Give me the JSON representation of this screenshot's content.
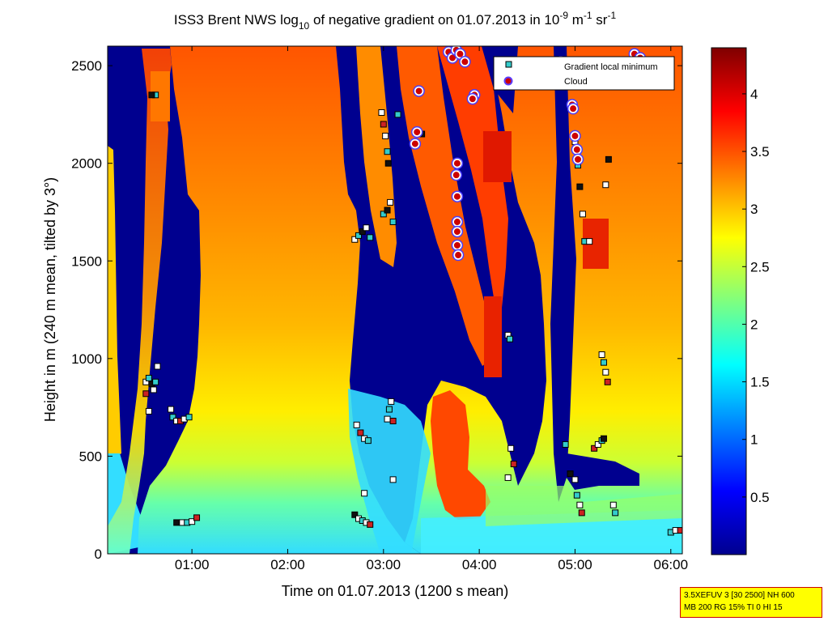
{
  "chart_data": {
    "type": "heatmap",
    "title": "ISS3 Brent NWS log10 of negative gradient on 01.07.2013 in 10-9 m-1 sr-1",
    "title_parts": {
      "main": "ISS3 Brent NWS log",
      "sub10": "10",
      "mid": " of negative gradient on 01.07.2013 in 10",
      "sup9": "-9",
      "m": " m",
      "sup1": "-1",
      "sr": " sr",
      "sup1b": "-1"
    },
    "xlabel": "Time on 01.07.2013 (1200 s mean)",
    "ylabel": "Height in m (240 m mean, tilted by 3°)",
    "x_ticks": [
      "01:00",
      "02:00",
      "03:00",
      "04:00",
      "05:00",
      "06:00"
    ],
    "x_tick_hours": [
      1,
      2,
      3,
      4,
      5,
      6
    ],
    "xlim_hours": [
      0.12,
      6.12
    ],
    "y_ticks": [
      "0",
      "500",
      "1000",
      "1500",
      "2000",
      "2500"
    ],
    "y_tick_values": [
      0,
      500,
      1000,
      1500,
      2000,
      2500
    ],
    "ylim": [
      0,
      2600
    ],
    "colorbar": {
      "ticks": [
        "0.5",
        "1",
        "1.5",
        "2",
        "2.5",
        "3",
        "3.5",
        "4"
      ],
      "tick_values": [
        0.5,
        1,
        1.5,
        2,
        2.5,
        3,
        3.5,
        4
      ],
      "range": [
        0,
        4.4
      ],
      "colormap": "jet"
    },
    "legend": {
      "placement": "top-right",
      "entries": [
        {
          "label": "Gradient local minimum",
          "marker": "square",
          "color": "#33cccc"
        },
        {
          "label": "Cloud",
          "marker": "circle",
          "color": "#cc0000"
        }
      ]
    },
    "heatmap_background": "#00008f",
    "heatmap_regions": [
      {
        "name": "main-plume-orange-top",
        "level": 3.3
      },
      {
        "name": "main-plume-yellow-mid",
        "level": 2.9
      },
      {
        "name": "main-plume-green-low",
        "level": 2.0
      },
      {
        "name": "surface-cyan-layer",
        "level": 1.5
      },
      {
        "name": "red-cells",
        "level": 3.8
      }
    ],
    "gradient_minima": [
      [
        0.52,
        880
      ],
      [
        0.55,
        900
      ],
      [
        0.58,
        870
      ],
      [
        0.6,
        840
      ],
      [
        0.62,
        880
      ],
      [
        0.55,
        730
      ],
      [
        0.52,
        820
      ],
      [
        0.64,
        960
      ],
      [
        0.62,
        2350
      ],
      [
        0.58,
        2350
      ],
      [
        0.78,
        740
      ],
      [
        0.8,
        700
      ],
      [
        0.84,
        680
      ],
      [
        0.88,
        680
      ],
      [
        0.92,
        690
      ],
      [
        0.97,
        700
      ],
      [
        0.84,
        160
      ],
      [
        0.9,
        160
      ],
      [
        0.95,
        160
      ],
      [
        1.0,
        165
      ],
      [
        1.05,
        185
      ],
      [
        2.7,
        1610
      ],
      [
        2.74,
        1630
      ],
      [
        2.78,
        1650
      ],
      [
        2.82,
        1670
      ],
      [
        2.86,
        1620
      ],
      [
        2.72,
        660
      ],
      [
        2.76,
        620
      ],
      [
        2.8,
        590
      ],
      [
        2.84,
        580
      ],
      [
        2.7,
        200
      ],
      [
        2.74,
        180
      ],
      [
        2.78,
        170
      ],
      [
        2.82,
        160
      ],
      [
        2.86,
        150
      ],
      [
        2.8,
        310
      ],
      [
        3.0,
        1740
      ],
      [
        3.04,
        1760
      ],
      [
        3.07,
        1800
      ],
      [
        3.1,
        1700
      ],
      [
        2.98,
        2260
      ],
      [
        3.0,
        2200
      ],
      [
        3.02,
        2140
      ],
      [
        3.04,
        2060
      ],
      [
        3.05,
        2000
      ],
      [
        3.04,
        690
      ],
      [
        3.06,
        740
      ],
      [
        3.08,
        780
      ],
      [
        3.1,
        680
      ],
      [
        3.1,
        380
      ],
      [
        3.15,
        2250
      ],
      [
        3.4,
        2150
      ],
      [
        4.3,
        1120
      ],
      [
        4.32,
        1100
      ],
      [
        4.33,
        540
      ],
      [
        4.36,
        460
      ],
      [
        4.3,
        390
      ],
      [
        4.9,
        560
      ],
      [
        4.95,
        410
      ],
      [
        5.0,
        380
      ],
      [
        5.02,
        300
      ],
      [
        5.05,
        250
      ],
      [
        5.07,
        210
      ],
      [
        5.0,
        2110
      ],
      [
        5.03,
        1990
      ],
      [
        5.05,
        1880
      ],
      [
        5.08,
        1740
      ],
      [
        5.1,
        1600
      ],
      [
        5.15,
        1600
      ],
      [
        5.2,
        540
      ],
      [
        5.24,
        560
      ],
      [
        5.28,
        580
      ],
      [
        5.3,
        590
      ],
      [
        5.28,
        1020
      ],
      [
        5.3,
        980
      ],
      [
        5.32,
        930
      ],
      [
        5.34,
        880
      ],
      [
        5.4,
        250
      ],
      [
        5.42,
        210
      ],
      [
        5.35,
        2020
      ],
      [
        5.32,
        1890
      ],
      [
        6.0,
        110
      ],
      [
        6.05,
        120
      ],
      [
        6.1,
        120
      ]
    ],
    "clouds": [
      [
        3.68,
        2570
      ],
      [
        3.72,
        2540
      ],
      [
        3.76,
        2580
      ],
      [
        3.8,
        2560
      ],
      [
        3.85,
        2520
      ],
      [
        3.37,
        2370
      ],
      [
        3.35,
        2160
      ],
      [
        3.33,
        2100
      ],
      [
        3.77,
        1700
      ],
      [
        3.77,
        1650
      ],
      [
        3.77,
        1580
      ],
      [
        3.78,
        1530
      ],
      [
        3.77,
        1830
      ],
      [
        3.76,
        1940
      ],
      [
        3.77,
        2000
      ],
      [
        3.95,
        2350
      ],
      [
        3.93,
        2330
      ],
      [
        4.97,
        2300
      ],
      [
        4.98,
        2280
      ],
      [
        5.0,
        2140
      ],
      [
        5.02,
        2070
      ],
      [
        5.03,
        2020
      ],
      [
        4.85,
        2520
      ],
      [
        5.62,
        2560
      ],
      [
        5.68,
        2540
      ]
    ]
  },
  "param_box": {
    "line1": "3.5XEFUV 3 [30 2500] NH 600",
    "line2": "MB 200 RG 15% TI 0 HI 15"
  }
}
